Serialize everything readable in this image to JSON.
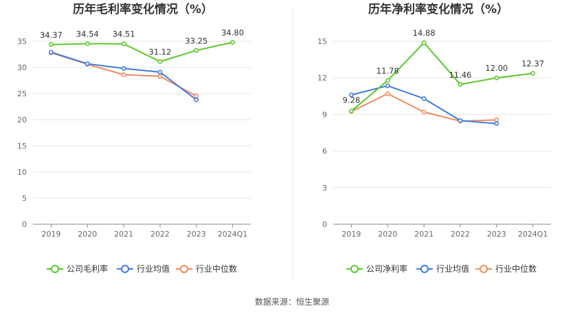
{
  "chart_data": [
    {
      "type": "line",
      "title": "历年毛利率变化情况（%）",
      "categories": [
        "2019",
        "2020",
        "2021",
        "2022",
        "2023",
        "2024Q1"
      ],
      "ylim": [
        0,
        35
      ],
      "yticks": [
        0,
        5,
        10,
        15,
        20,
        25,
        30,
        35
      ],
      "ytick_labels": [
        "0",
        "5",
        "10",
        "15",
        "20",
        "25",
        "30",
        "35"
      ],
      "series": [
        {
          "name": "公司毛利率",
          "color": "#5ac82a",
          "values": [
            34.37,
            34.54,
            34.51,
            31.12,
            33.25,
            34.8
          ],
          "labels": [
            "34.37",
            "34.54",
            "34.51",
            "31.12",
            "33.25",
            "34.80"
          ]
        },
        {
          "name": "行业均值",
          "color": "#3d7be0",
          "values": [
            32.9,
            30.7,
            29.8,
            29.1,
            23.8,
            null
          ]
        },
        {
          "name": "行业中位数",
          "color": "#f08a5d",
          "values": [
            32.8,
            30.6,
            28.6,
            28.3,
            24.5,
            null
          ]
        }
      ]
    },
    {
      "type": "line",
      "title": "历年净利率变化情况（%）",
      "categories": [
        "2019",
        "2020",
        "2021",
        "2022",
        "2023",
        "2024Q1"
      ],
      "ylim": [
        0,
        15
      ],
      "yticks": [
        0,
        3,
        6,
        9,
        12,
        15
      ],
      "ytick_labels": [
        "0",
        "3",
        "6",
        "9",
        "12",
        "15"
      ],
      "series": [
        {
          "name": "公司净利率",
          "color": "#5ac82a",
          "values": [
            9.28,
            11.78,
            14.88,
            11.46,
            12.0,
            12.37
          ],
          "labels": [
            "9.28",
            "11.78",
            "14.88",
            "11.46",
            "12.00",
            "12.37"
          ]
        },
        {
          "name": "行业均值",
          "color": "#3d7be0",
          "values": [
            10.6,
            11.35,
            10.3,
            8.5,
            8.25,
            null
          ]
        },
        {
          "name": "行业中位数",
          "color": "#f08a5d",
          "values": [
            9.25,
            10.7,
            9.2,
            8.45,
            8.55,
            null
          ]
        }
      ]
    }
  ],
  "source_text": "数据来源：恒生聚源"
}
